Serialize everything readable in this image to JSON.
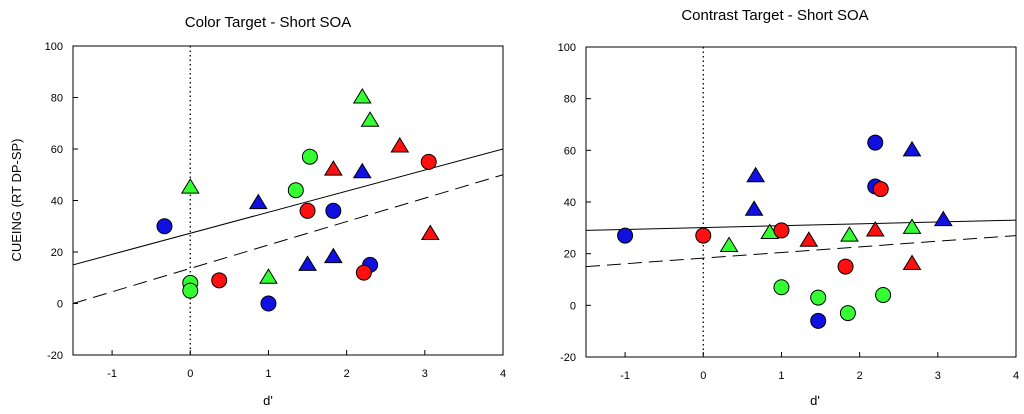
{
  "shared": {
    "ylabel": "CUEING (RT DP-SP)",
    "xlabel": "d'"
  },
  "chart_data": [
    {
      "type": "scatter",
      "title": "Color Target - Short SOA",
      "xlabel": "d'",
      "ylabel": "CUEING (RT DP-SP)",
      "xlim": [
        -1.5,
        4
      ],
      "ylim": [
        -20,
        100
      ],
      "xticks": [
        "-1",
        "0",
        "1",
        "2",
        "3",
        "4"
      ],
      "yticks": [
        "-20",
        "0",
        "20",
        "40",
        "60",
        "80",
        "100"
      ],
      "grid": false,
      "colors": {
        "blue": "#1010e0",
        "red": "#ff1010",
        "green": "#33ff33"
      },
      "vline_x": 0,
      "solid_line": {
        "x": [
          -1.5,
          4
        ],
        "y": [
          15,
          60
        ]
      },
      "dashed_line": {
        "x": [
          -1.5,
          4
        ],
        "y": [
          0,
          50
        ]
      },
      "points": [
        {
          "x": -0.33,
          "y": 30,
          "shape": "circle",
          "color": "blue"
        },
        {
          "x": 0.0,
          "y": 45,
          "shape": "triangle",
          "color": "green"
        },
        {
          "x": 0.0,
          "y": 8,
          "shape": "circle",
          "color": "green"
        },
        {
          "x": 0.0,
          "y": 5,
          "shape": "circle",
          "color": "green"
        },
        {
          "x": 0.37,
          "y": 9,
          "shape": "circle",
          "color": "red"
        },
        {
          "x": 0.87,
          "y": 39,
          "shape": "triangle",
          "color": "blue"
        },
        {
          "x": 1.0,
          "y": 10,
          "shape": "triangle",
          "color": "green"
        },
        {
          "x": 1.0,
          "y": 0,
          "shape": "circle",
          "color": "blue"
        },
        {
          "x": 1.35,
          "y": 44,
          "shape": "circle",
          "color": "green"
        },
        {
          "x": 1.5,
          "y": 15,
          "shape": "triangle",
          "color": "blue"
        },
        {
          "x": 1.5,
          "y": 36,
          "shape": "circle",
          "color": "red"
        },
        {
          "x": 1.53,
          "y": 57,
          "shape": "circle",
          "color": "green"
        },
        {
          "x": 1.83,
          "y": 52,
          "shape": "triangle",
          "color": "red"
        },
        {
          "x": 1.83,
          "y": 18,
          "shape": "triangle",
          "color": "blue"
        },
        {
          "x": 1.83,
          "y": 36,
          "shape": "circle",
          "color": "blue"
        },
        {
          "x": 2.2,
          "y": 80,
          "shape": "triangle",
          "color": "green"
        },
        {
          "x": 2.3,
          "y": 71,
          "shape": "triangle",
          "color": "green"
        },
        {
          "x": 2.2,
          "y": 51,
          "shape": "triangle",
          "color": "blue"
        },
        {
          "x": 2.3,
          "y": 15,
          "shape": "circle",
          "color": "blue"
        },
        {
          "x": 2.22,
          "y": 12,
          "shape": "circle",
          "color": "red"
        },
        {
          "x": 2.68,
          "y": 61,
          "shape": "triangle",
          "color": "red"
        },
        {
          "x": 3.05,
          "y": 55,
          "shape": "circle",
          "color": "red"
        },
        {
          "x": 3.07,
          "y": 27,
          "shape": "triangle",
          "color": "red"
        }
      ]
    },
    {
      "type": "scatter",
      "title": "Contrast Target - Short SOA",
      "xlabel": "d'",
      "ylabel": "",
      "xlim": [
        -1.5,
        4
      ],
      "ylim": [
        -20,
        100
      ],
      "xticks": [
        "-1",
        "0",
        "1",
        "2",
        "3",
        "4"
      ],
      "yticks": [
        "-20",
        "0",
        "20",
        "40",
        "60",
        "80",
        "100"
      ],
      "grid": false,
      "colors": {
        "blue": "#1010e0",
        "red": "#ff1010",
        "green": "#33ff33"
      },
      "vline_x": 0,
      "solid_line": {
        "x": [
          -1.5,
          4
        ],
        "y": [
          29,
          33
        ]
      },
      "dashed_line": {
        "x": [
          -1.5,
          4
        ],
        "y": [
          15,
          27
        ]
      },
      "points": [
        {
          "x": -1.0,
          "y": 27,
          "shape": "circle",
          "color": "blue"
        },
        {
          "x": 0.0,
          "y": 27,
          "shape": "circle",
          "color": "red"
        },
        {
          "x": 0.33,
          "y": 23,
          "shape": "triangle",
          "color": "green"
        },
        {
          "x": 0.67,
          "y": 50,
          "shape": "triangle",
          "color": "blue"
        },
        {
          "x": 0.65,
          "y": 37,
          "shape": "triangle",
          "color": "blue"
        },
        {
          "x": 0.85,
          "y": 28,
          "shape": "triangle",
          "color": "green"
        },
        {
          "x": 1.0,
          "y": 29,
          "shape": "circle",
          "color": "red"
        },
        {
          "x": 1.0,
          "y": 7,
          "shape": "circle",
          "color": "green"
        },
        {
          "x": 1.35,
          "y": 25,
          "shape": "triangle",
          "color": "red"
        },
        {
          "x": 1.47,
          "y": 3,
          "shape": "circle",
          "color": "green"
        },
        {
          "x": 1.47,
          "y": -6,
          "shape": "circle",
          "color": "blue"
        },
        {
          "x": 1.82,
          "y": 15,
          "shape": "circle",
          "color": "red"
        },
        {
          "x": 1.87,
          "y": 27,
          "shape": "triangle",
          "color": "green"
        },
        {
          "x": 1.85,
          "y": -3,
          "shape": "circle",
          "color": "green"
        },
        {
          "x": 2.2,
          "y": 63,
          "shape": "circle",
          "color": "blue"
        },
        {
          "x": 2.2,
          "y": 46,
          "shape": "circle",
          "color": "blue"
        },
        {
          "x": 2.27,
          "y": 45,
          "shape": "circle",
          "color": "red"
        },
        {
          "x": 2.2,
          "y": 29,
          "shape": "triangle",
          "color": "red"
        },
        {
          "x": 2.3,
          "y": 4,
          "shape": "circle",
          "color": "green"
        },
        {
          "x": 2.67,
          "y": 60,
          "shape": "triangle",
          "color": "blue"
        },
        {
          "x": 2.67,
          "y": 30,
          "shape": "triangle",
          "color": "green"
        },
        {
          "x": 2.67,
          "y": 16,
          "shape": "triangle",
          "color": "red"
        },
        {
          "x": 3.07,
          "y": 33,
          "shape": "triangle",
          "color": "blue"
        }
      ]
    }
  ]
}
